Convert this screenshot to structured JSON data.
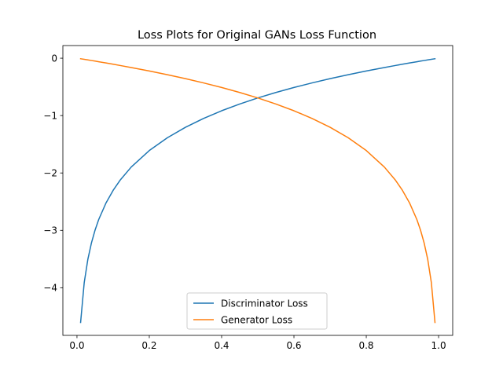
{
  "chart_data": {
    "type": "line",
    "title": "Loss Plots for Original GANs Loss Function",
    "xlabel": "",
    "ylabel": "",
    "xlim": [
      -0.039,
      1.039
    ],
    "ylim": [
      -4.83,
      0.22
    ],
    "xticks": [
      0,
      0.2,
      0.4,
      0.6,
      0.8,
      1.0
    ],
    "xtick_labels": [
      "0.0",
      "0.2",
      "0.4",
      "0.6",
      "0.8",
      "1.0"
    ],
    "yticks": [
      0,
      -1,
      -2,
      -3,
      -4
    ],
    "ytick_labels": [
      "0",
      "−1",
      "−2",
      "−3",
      "−4"
    ],
    "x": [
      0.01,
      0.02,
      0.03,
      0.04,
      0.05,
      0.06,
      0.08,
      0.1,
      0.12,
      0.15,
      0.2,
      0.25,
      0.3,
      0.35,
      0.4,
      0.45,
      0.5,
      0.55,
      0.6,
      0.65,
      0.7,
      0.75,
      0.8,
      0.85,
      0.88,
      0.9,
      0.92,
      0.94,
      0.95,
      0.96,
      0.97,
      0.98,
      0.99
    ],
    "series": [
      {
        "name": "Discriminator Loss",
        "color": "#1f77b4",
        "values": [
          -4.605,
          -3.912,
          -3.507,
          -3.219,
          -2.996,
          -2.813,
          -2.526,
          -2.303,
          -2.12,
          -1.897,
          -1.609,
          -1.386,
          -1.204,
          -1.05,
          -0.916,
          -0.799,
          -0.693,
          -0.598,
          -0.511,
          -0.431,
          -0.357,
          -0.288,
          -0.223,
          -0.163,
          -0.128,
          -0.105,
          -0.083,
          -0.062,
          -0.051,
          -0.041,
          -0.03,
          -0.02,
          -0.01
        ]
      },
      {
        "name": "Generator Loss",
        "color": "#ff7f0e",
        "values": [
          -0.01,
          -0.02,
          -0.03,
          -0.041,
          -0.051,
          -0.062,
          -0.083,
          -0.105,
          -0.128,
          -0.163,
          -0.223,
          -0.288,
          -0.357,
          -0.431,
          -0.511,
          -0.598,
          -0.693,
          -0.799,
          -0.916,
          -1.05,
          -1.204,
          -1.386,
          -1.609,
          -1.897,
          -2.12,
          -2.303,
          -2.526,
          -2.813,
          -2.996,
          -3.219,
          -3.507,
          -3.912,
          -4.605
        ]
      }
    ],
    "legend_position": "lower-center",
    "grid": false
  }
}
